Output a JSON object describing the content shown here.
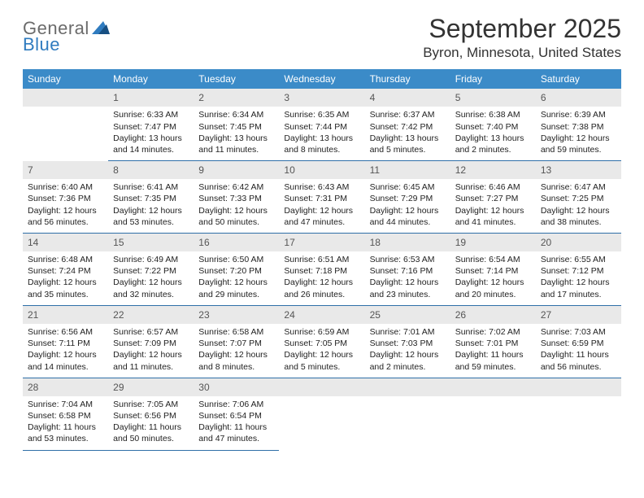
{
  "brand": {
    "word1": "General",
    "word2": "Blue",
    "logo_color_primary": "#2f7bbf",
    "logo_color_secondary": "#174f82"
  },
  "title": {
    "month_year": "September 2025",
    "location": "Byron, Minnesota, United States"
  },
  "colors": {
    "header_bg": "#3b8bc8",
    "header_text": "#ffffff",
    "daynum_bg": "#e9e9e9",
    "daynum_text": "#555555",
    "cell_border": "#2f6fa8",
    "body_text": "#222222"
  },
  "day_headers": [
    "Sunday",
    "Monday",
    "Tuesday",
    "Wednesday",
    "Thursday",
    "Friday",
    "Saturday"
  ],
  "weeks": [
    [
      null,
      {
        "n": "1",
        "sunrise": "Sunrise: 6:33 AM",
        "sunset": "Sunset: 7:47 PM",
        "daylight": "Daylight: 13 hours and 14 minutes."
      },
      {
        "n": "2",
        "sunrise": "Sunrise: 6:34 AM",
        "sunset": "Sunset: 7:45 PM",
        "daylight": "Daylight: 13 hours and 11 minutes."
      },
      {
        "n": "3",
        "sunrise": "Sunrise: 6:35 AM",
        "sunset": "Sunset: 7:44 PM",
        "daylight": "Daylight: 13 hours and 8 minutes."
      },
      {
        "n": "4",
        "sunrise": "Sunrise: 6:37 AM",
        "sunset": "Sunset: 7:42 PM",
        "daylight": "Daylight: 13 hours and 5 minutes."
      },
      {
        "n": "5",
        "sunrise": "Sunrise: 6:38 AM",
        "sunset": "Sunset: 7:40 PM",
        "daylight": "Daylight: 13 hours and 2 minutes."
      },
      {
        "n": "6",
        "sunrise": "Sunrise: 6:39 AM",
        "sunset": "Sunset: 7:38 PM",
        "daylight": "Daylight: 12 hours and 59 minutes."
      }
    ],
    [
      {
        "n": "7",
        "sunrise": "Sunrise: 6:40 AM",
        "sunset": "Sunset: 7:36 PM",
        "daylight": "Daylight: 12 hours and 56 minutes."
      },
      {
        "n": "8",
        "sunrise": "Sunrise: 6:41 AM",
        "sunset": "Sunset: 7:35 PM",
        "daylight": "Daylight: 12 hours and 53 minutes."
      },
      {
        "n": "9",
        "sunrise": "Sunrise: 6:42 AM",
        "sunset": "Sunset: 7:33 PM",
        "daylight": "Daylight: 12 hours and 50 minutes."
      },
      {
        "n": "10",
        "sunrise": "Sunrise: 6:43 AM",
        "sunset": "Sunset: 7:31 PM",
        "daylight": "Daylight: 12 hours and 47 minutes."
      },
      {
        "n": "11",
        "sunrise": "Sunrise: 6:45 AM",
        "sunset": "Sunset: 7:29 PM",
        "daylight": "Daylight: 12 hours and 44 minutes."
      },
      {
        "n": "12",
        "sunrise": "Sunrise: 6:46 AM",
        "sunset": "Sunset: 7:27 PM",
        "daylight": "Daylight: 12 hours and 41 minutes."
      },
      {
        "n": "13",
        "sunrise": "Sunrise: 6:47 AM",
        "sunset": "Sunset: 7:25 PM",
        "daylight": "Daylight: 12 hours and 38 minutes."
      }
    ],
    [
      {
        "n": "14",
        "sunrise": "Sunrise: 6:48 AM",
        "sunset": "Sunset: 7:24 PM",
        "daylight": "Daylight: 12 hours and 35 minutes."
      },
      {
        "n": "15",
        "sunrise": "Sunrise: 6:49 AM",
        "sunset": "Sunset: 7:22 PM",
        "daylight": "Daylight: 12 hours and 32 minutes."
      },
      {
        "n": "16",
        "sunrise": "Sunrise: 6:50 AM",
        "sunset": "Sunset: 7:20 PM",
        "daylight": "Daylight: 12 hours and 29 minutes."
      },
      {
        "n": "17",
        "sunrise": "Sunrise: 6:51 AM",
        "sunset": "Sunset: 7:18 PM",
        "daylight": "Daylight: 12 hours and 26 minutes."
      },
      {
        "n": "18",
        "sunrise": "Sunrise: 6:53 AM",
        "sunset": "Sunset: 7:16 PM",
        "daylight": "Daylight: 12 hours and 23 minutes."
      },
      {
        "n": "19",
        "sunrise": "Sunrise: 6:54 AM",
        "sunset": "Sunset: 7:14 PM",
        "daylight": "Daylight: 12 hours and 20 minutes."
      },
      {
        "n": "20",
        "sunrise": "Sunrise: 6:55 AM",
        "sunset": "Sunset: 7:12 PM",
        "daylight": "Daylight: 12 hours and 17 minutes."
      }
    ],
    [
      {
        "n": "21",
        "sunrise": "Sunrise: 6:56 AM",
        "sunset": "Sunset: 7:11 PM",
        "daylight": "Daylight: 12 hours and 14 minutes."
      },
      {
        "n": "22",
        "sunrise": "Sunrise: 6:57 AM",
        "sunset": "Sunset: 7:09 PM",
        "daylight": "Daylight: 12 hours and 11 minutes."
      },
      {
        "n": "23",
        "sunrise": "Sunrise: 6:58 AM",
        "sunset": "Sunset: 7:07 PM",
        "daylight": "Daylight: 12 hours and 8 minutes."
      },
      {
        "n": "24",
        "sunrise": "Sunrise: 6:59 AM",
        "sunset": "Sunset: 7:05 PM",
        "daylight": "Daylight: 12 hours and 5 minutes."
      },
      {
        "n": "25",
        "sunrise": "Sunrise: 7:01 AM",
        "sunset": "Sunset: 7:03 PM",
        "daylight": "Daylight: 12 hours and 2 minutes."
      },
      {
        "n": "26",
        "sunrise": "Sunrise: 7:02 AM",
        "sunset": "Sunset: 7:01 PM",
        "daylight": "Daylight: 11 hours and 59 minutes."
      },
      {
        "n": "27",
        "sunrise": "Sunrise: 7:03 AM",
        "sunset": "Sunset: 6:59 PM",
        "daylight": "Daylight: 11 hours and 56 minutes."
      }
    ],
    [
      {
        "n": "28",
        "sunrise": "Sunrise: 7:04 AM",
        "sunset": "Sunset: 6:58 PM",
        "daylight": "Daylight: 11 hours and 53 minutes."
      },
      {
        "n": "29",
        "sunrise": "Sunrise: 7:05 AM",
        "sunset": "Sunset: 6:56 PM",
        "daylight": "Daylight: 11 hours and 50 minutes."
      },
      {
        "n": "30",
        "sunrise": "Sunrise: 7:06 AM",
        "sunset": "Sunset: 6:54 PM",
        "daylight": "Daylight: 11 hours and 47 minutes."
      },
      null,
      null,
      null,
      null
    ]
  ]
}
